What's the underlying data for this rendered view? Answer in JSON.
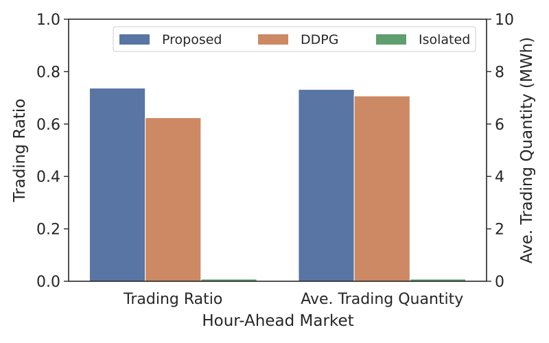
{
  "chart_data": {
    "type": "bar",
    "categories": [
      "Trading Ratio",
      "Ave. Trading Quantity"
    ],
    "series": [
      {
        "name": "Proposed",
        "color": "#5875a4",
        "values": [
          0.737,
          7.32
        ]
      },
      {
        "name": "DDPG",
        "color": "#cc8963",
        "values": [
          0.624,
          7.07
        ]
      },
      {
        "name": "Isolated",
        "color": "#5f9e6e",
        "values": [
          0.008,
          0.08
        ]
      }
    ],
    "value_axis_per_category": [
      "left",
      "right"
    ],
    "xlabel": "Hour-Ahead Market",
    "ylabel_left": "Trading Ratio",
    "ylabel_right": "Ave. Trading Quantity (MWh)",
    "ylim_left": [
      0,
      1.0
    ],
    "ylim_right": [
      0,
      10
    ],
    "yticks_left": [
      "0.0",
      "0.2",
      "0.4",
      "0.6",
      "0.8",
      "1.0"
    ],
    "yticks_right": [
      "0",
      "2",
      "4",
      "6",
      "8",
      "10"
    ],
    "grid": false,
    "legend": {
      "placement": "top-right",
      "columns": 3
    }
  }
}
